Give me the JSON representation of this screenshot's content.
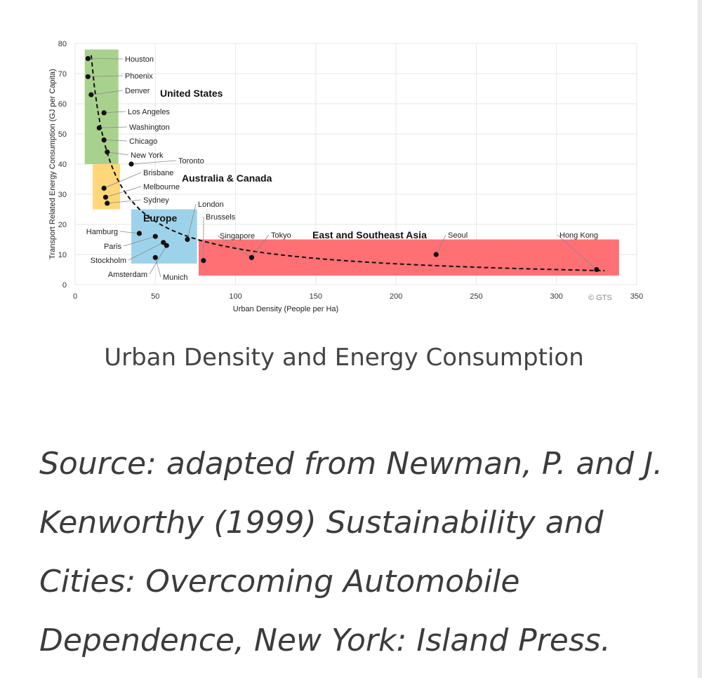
{
  "chart_data": {
    "type": "scatter",
    "xlabel": "Urban Density (People per Ha)",
    "ylabel": "Transport Related Energy Consumption (GJ per Capita)",
    "xlim": [
      0,
      350
    ],
    "ylim": [
      0,
      80
    ],
    "x_ticks": [
      "0",
      "50",
      "100",
      "150",
      "200",
      "250",
      "300",
      "350"
    ],
    "y_ticks": [
      "0",
      "10",
      "20",
      "30",
      "40",
      "50",
      "60",
      "70",
      "80"
    ],
    "grid": true,
    "copyright": "© GTS",
    "points": [
      {
        "label": "Houston",
        "x": 8,
        "y": 75
      },
      {
        "label": "Phoenix",
        "x": 8,
        "y": 69
      },
      {
        "label": "Denver",
        "x": 10,
        "y": 63
      },
      {
        "label": "Los Angeles",
        "x": 18,
        "y": 57
      },
      {
        "label": "Washington",
        "x": 15,
        "y": 52
      },
      {
        "label": "Chicago",
        "x": 18,
        "y": 48
      },
      {
        "label": "New York",
        "x": 20,
        "y": 44
      },
      {
        "label": "Toronto",
        "x": 35,
        "y": 40
      },
      {
        "label": "Brisbane",
        "x": 18,
        "y": 32
      },
      {
        "label": "Melbourne",
        "x": 19,
        "y": 29
      },
      {
        "label": "Sydney",
        "x": 20,
        "y": 27
      },
      {
        "label": "Hamburg",
        "x": 40,
        "y": 17
      },
      {
        "label": "Paris",
        "x": 50,
        "y": 16
      },
      {
        "label": "Stockholm",
        "x": 55,
        "y": 14
      },
      {
        "label": "Amsterdam",
        "x": 57,
        "y": 13
      },
      {
        "label": "Munich",
        "x": 50,
        "y": 9
      },
      {
        "label": "London",
        "x": 70,
        "y": 15
      },
      {
        "label": "Brussels",
        "x": 80,
        "y": 8
      },
      {
        "label": "Singapore",
        "x": 110,
        "y": 9
      },
      {
        "label": "Tokyo",
        "x": 110,
        "y": 9
      },
      {
        "label": "Seoul",
        "x": 225,
        "y": 10
      },
      {
        "label": "Hong Kong",
        "x": 325,
        "y": 5
      }
    ],
    "regions": [
      {
        "name": "United States",
        "color": "#a9d18e",
        "x0": 6,
        "x1": 27,
        "y0": 40,
        "y1": 78
      },
      {
        "name": "Australia & Canada",
        "color": "#ffd77a",
        "x0": 11,
        "x1": 28,
        "y0": 25,
        "y1": 40
      },
      {
        "name": "Europe",
        "color": "#9dd3ea",
        "x0": 35,
        "x1": 76,
        "y0": 7,
        "y1": 25
      },
      {
        "name": "East and Southeast Asia",
        "color": "#ff7074",
        "x0": 77,
        "x1": 339,
        "y0": 3,
        "y1": 15
      }
    ],
    "trend": {
      "type": "power",
      "a": 480,
      "b": -0.8,
      "style": "dashed"
    }
  },
  "caption": "Urban Density and Energy Consumption",
  "source_text": "Source: adapted from Newman, P. and J. Kenworthy (1999) Sustainability and Cities: Overcoming Automobile Dependence, New York: Island Press."
}
